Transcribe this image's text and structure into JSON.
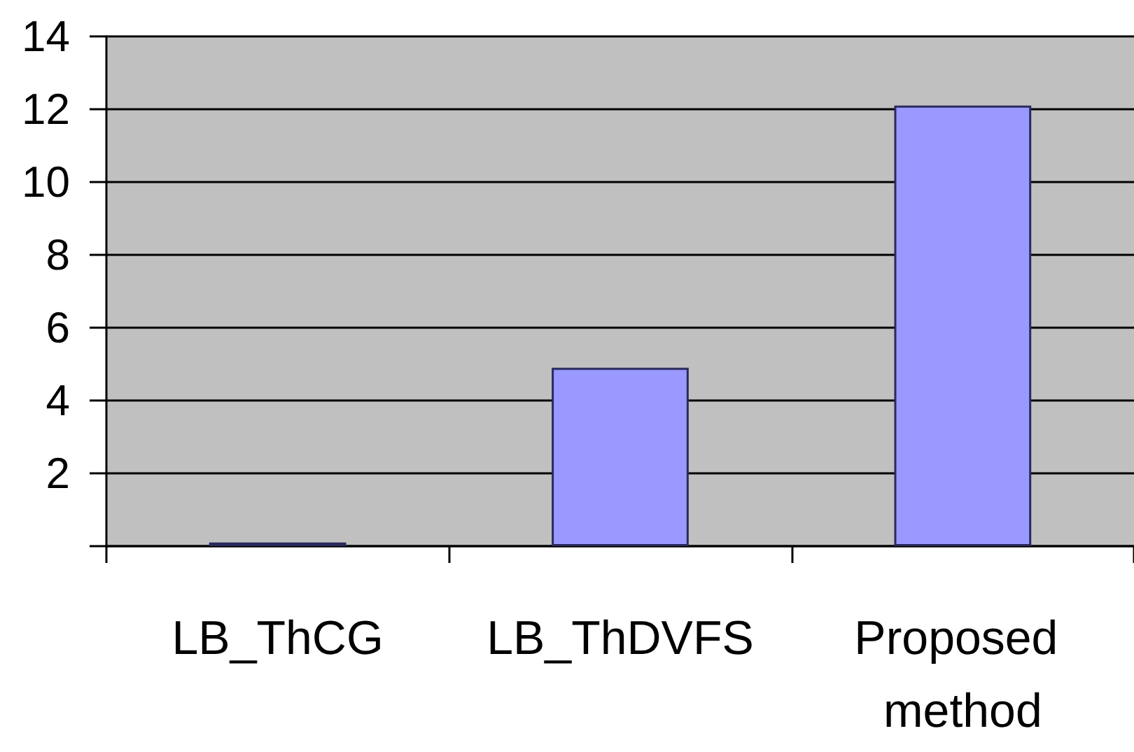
{
  "chart_data": {
    "type": "bar",
    "categories": [
      "LB_ThCG",
      "LB_ThDVFS",
      "Proposed method"
    ],
    "values": [
      0.1,
      4.9,
      12.1
    ],
    "color": "#9999ff",
    "ylim": [
      0,
      14
    ],
    "yticks": [
      {
        "value": 0,
        "label": null
      },
      2,
      4,
      6,
      8,
      10,
      12,
      14
    ],
    "grid": "y"
  }
}
